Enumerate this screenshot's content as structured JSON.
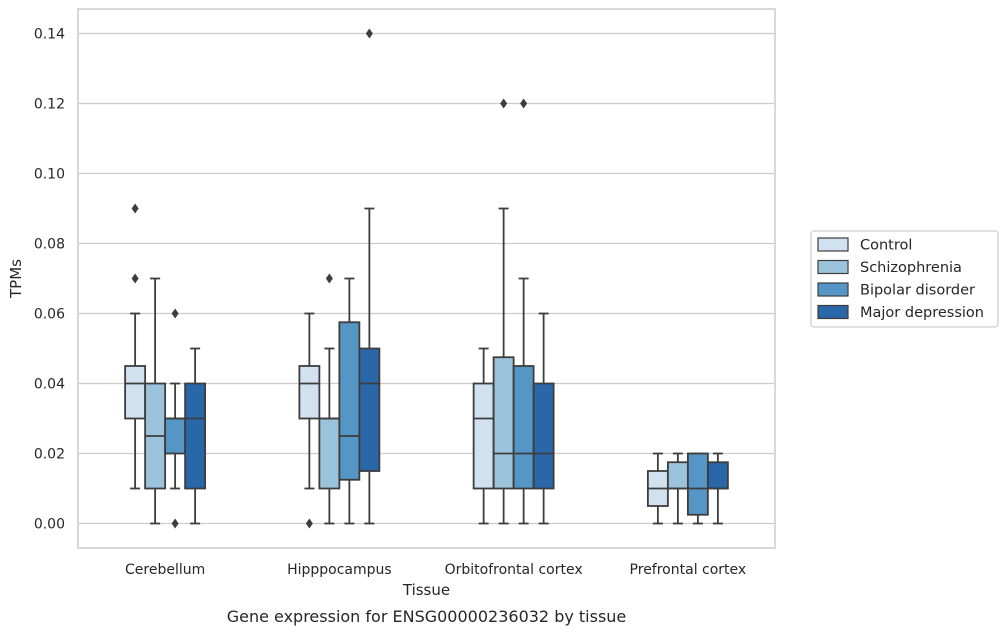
{
  "chart_data": {
    "type": "boxplot",
    "title": "",
    "caption": "Gene expression for ENSG00000236032 by tissue",
    "xlabel": "Tissue",
    "ylabel": "TPMs",
    "ylim": [
      -0.007,
      0.147
    ],
    "yticks": [
      0.0,
      0.02,
      0.04,
      0.06,
      0.08,
      0.1,
      0.12,
      0.14
    ],
    "ytick_labels": [
      "0.00",
      "0.02",
      "0.04",
      "0.06",
      "0.08",
      "0.10",
      "0.12",
      "0.14"
    ],
    "grid": "horizontal",
    "legend_position": "outside-right",
    "categories": [
      "Cerebellum",
      "Hipppocampus",
      "Orbitofrontal cortex",
      "Prefrontal cortex"
    ],
    "series": [
      {
        "name": "Control",
        "color": "#d1e1f0",
        "boxes": [
          {
            "whislo": 0.01,
            "q1": 0.03,
            "med": 0.04,
            "q3": 0.045,
            "whishi": 0.06,
            "fliers": [
              0.07,
              0.09
            ]
          },
          {
            "whislo": 0.01,
            "q1": 0.03,
            "med": 0.04,
            "q3": 0.045,
            "whishi": 0.06,
            "fliers": [
              0.0
            ]
          },
          {
            "whislo": 0.0,
            "q1": 0.01,
            "med": 0.03,
            "q3": 0.04,
            "whishi": 0.05,
            "fliers": []
          },
          {
            "whislo": 0.0,
            "q1": 0.005,
            "med": 0.01,
            "q3": 0.015,
            "whishi": 0.02,
            "fliers": []
          }
        ]
      },
      {
        "name": "Schizophrenia",
        "color": "#9cc3dc",
        "boxes": [
          {
            "whislo": 0.0,
            "q1": 0.01,
            "med": 0.025,
            "q3": 0.04,
            "whishi": 0.07,
            "fliers": []
          },
          {
            "whislo": 0.0,
            "q1": 0.01,
            "med": 0.03,
            "q3": 0.03,
            "whishi": 0.05,
            "fliers": [
              0.07
            ]
          },
          {
            "whislo": 0.0,
            "q1": 0.01,
            "med": 0.02,
            "q3": 0.0475,
            "whishi": 0.09,
            "fliers": [
              0.12
            ]
          },
          {
            "whislo": 0.0,
            "q1": 0.01,
            "med": 0.01,
            "q3": 0.0175,
            "whishi": 0.02,
            "fliers": []
          }
        ]
      },
      {
        "name": "Bipolar disorder",
        "color": "#5596c6",
        "boxes": [
          {
            "whislo": 0.01,
            "q1": 0.02,
            "med": 0.03,
            "q3": 0.03,
            "whishi": 0.04,
            "fliers": [
              0.0,
              0.06
            ]
          },
          {
            "whislo": 0.0,
            "q1": 0.0125,
            "med": 0.025,
            "q3": 0.0575,
            "whishi": 0.07,
            "fliers": []
          },
          {
            "whislo": 0.0,
            "q1": 0.01,
            "med": 0.02,
            "q3": 0.045,
            "whishi": 0.07,
            "fliers": [
              0.12
            ]
          },
          {
            "whislo": 0.0,
            "q1": 0.0025,
            "med": 0.01,
            "q3": 0.02,
            "whishi": 0.02,
            "fliers": []
          }
        ]
      },
      {
        "name": "Major depression",
        "color": "#2a67a8",
        "boxes": [
          {
            "whislo": 0.0,
            "q1": 0.01,
            "med": 0.03,
            "q3": 0.04,
            "whishi": 0.05,
            "fliers": []
          },
          {
            "whislo": 0.0,
            "q1": 0.015,
            "med": 0.04,
            "q3": 0.05,
            "whishi": 0.09,
            "fliers": [
              0.14
            ]
          },
          {
            "whislo": 0.0,
            "q1": 0.01,
            "med": 0.02,
            "q3": 0.04,
            "whishi": 0.06,
            "fliers": []
          },
          {
            "whislo": 0.0,
            "q1": 0.01,
            "med": 0.01,
            "q3": 0.0175,
            "whishi": 0.02,
            "fliers": []
          }
        ]
      }
    ]
  }
}
